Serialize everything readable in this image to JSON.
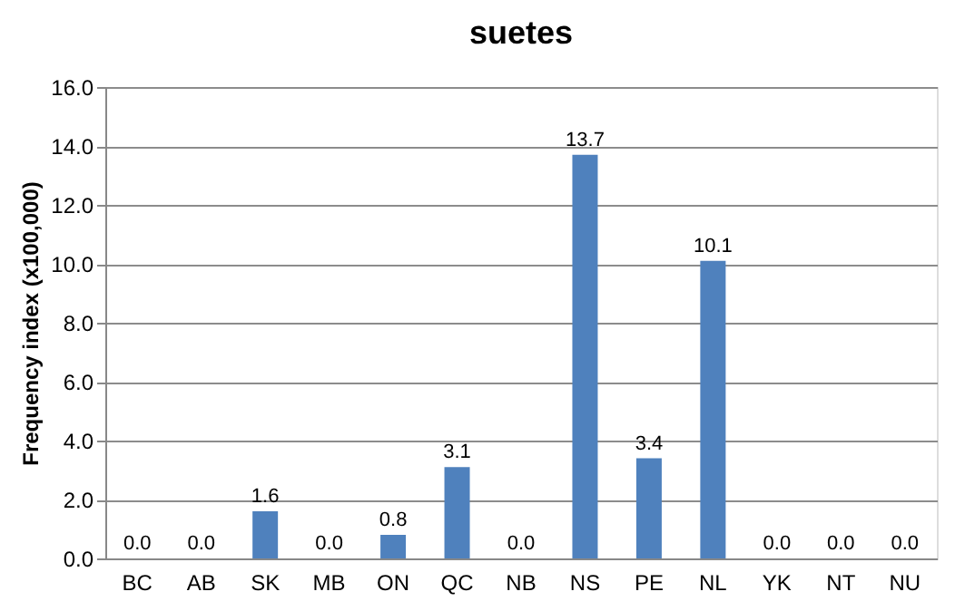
{
  "chart_data": {
    "type": "bar",
    "title": "suetes",
    "ylabel": "Frequency index (x100,000)",
    "categories": [
      "BC",
      "AB",
      "SK",
      "MB",
      "ON",
      "QC",
      "NB",
      "NS",
      "PE",
      "NL",
      "YK",
      "NT",
      "NU"
    ],
    "values": [
      0,
      0,
      1.6,
      0,
      0.8,
      3.1,
      0,
      13.7,
      3.4,
      10.1,
      0,
      0,
      0
    ],
    "value_labels": [
      "0.0",
      "0.0",
      "1.6",
      "0.0",
      "0.8",
      "3.1",
      "0.0",
      "13.7",
      "3.4",
      "10.1",
      "0.0",
      "0.0",
      "0.0"
    ],
    "color": "#4f81bd",
    "ylim": [
      0,
      16
    ],
    "yticks": [
      {
        "value": 0,
        "label": "0.0"
      },
      {
        "value": 2,
        "label": "2.0"
      },
      {
        "value": 4,
        "label": "4.0"
      },
      {
        "value": 6,
        "label": "6.0"
      },
      {
        "value": 8,
        "label": "8.0"
      },
      {
        "value": 10,
        "label": "10.0"
      },
      {
        "value": 12,
        "label": "12.0"
      },
      {
        "value": 14,
        "label": "14.0"
      },
      {
        "value": 16,
        "label": "16.0"
      }
    ],
    "grid": "y"
  }
}
